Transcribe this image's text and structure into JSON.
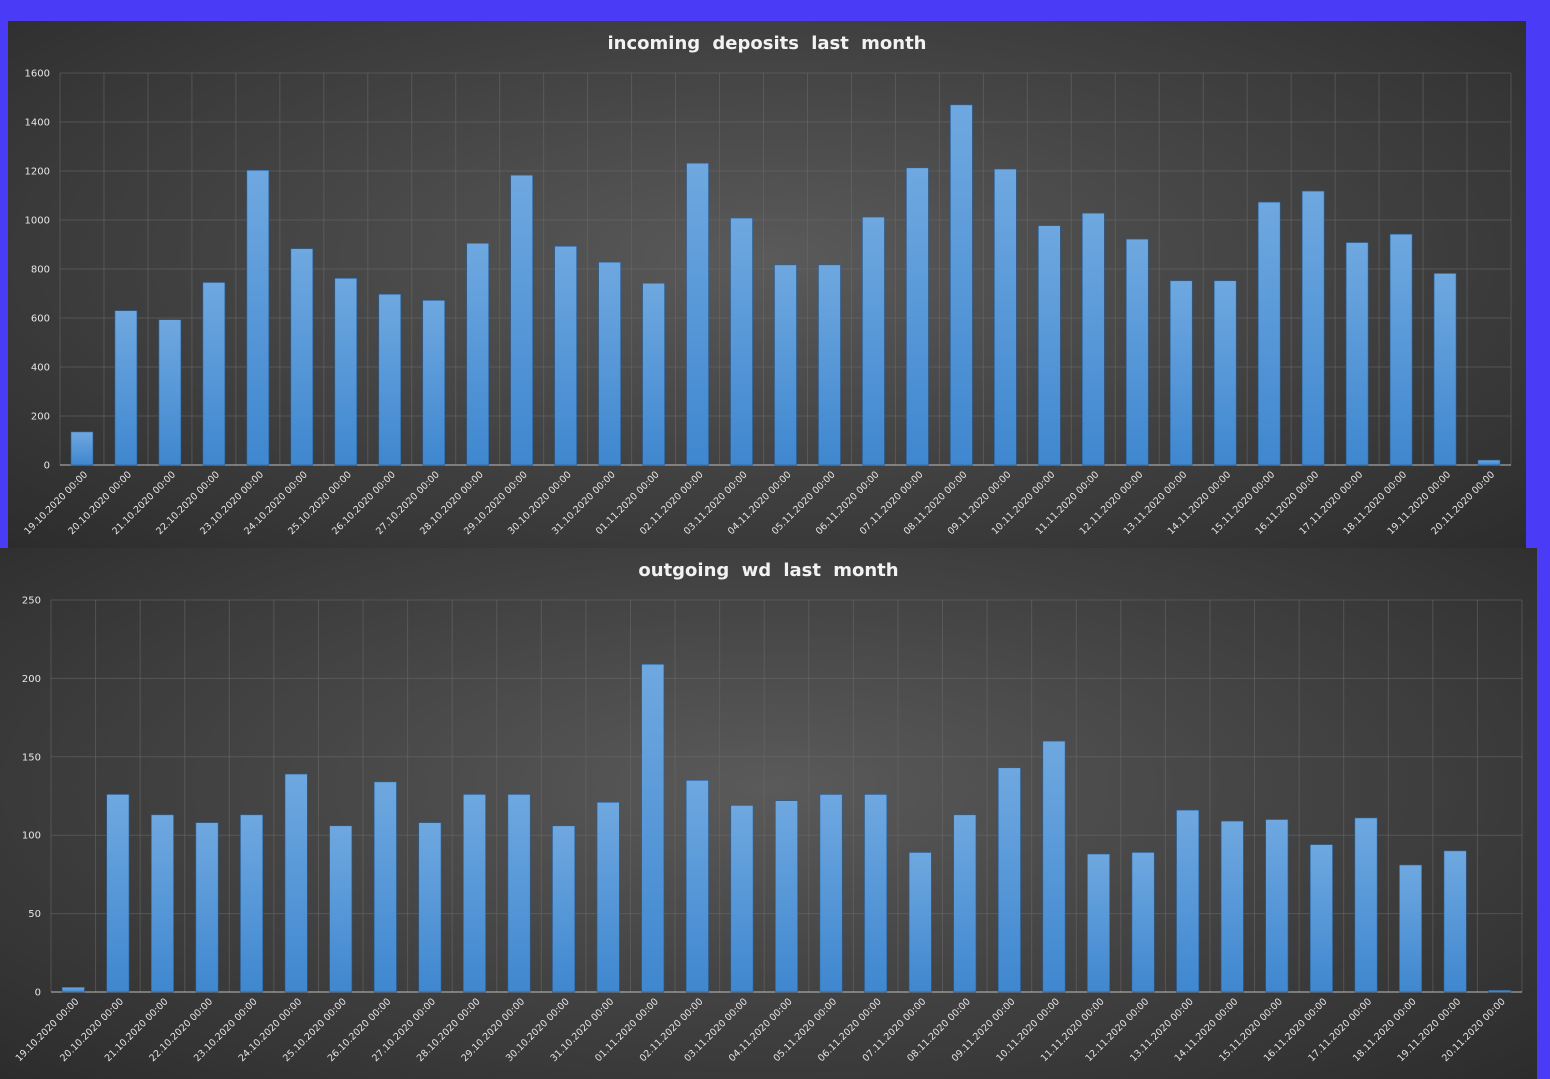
{
  "colors": {
    "background": "#4a3cf6",
    "bar_top": "#6fa8e0",
    "bar_bottom": "#3f87cf"
  },
  "chart_data": [
    {
      "type": "bar",
      "title": "incoming  deposits  last  month",
      "ylim": [
        0,
        1600
      ],
      "yticks": [
        0,
        200,
        400,
        600,
        800,
        1000,
        1200,
        1400,
        1600
      ],
      "categories": [
        "19.10.2020 00:00",
        "20.10.2020 00:00",
        "21.10.2020 00:00",
        "22.10.2020 00:00",
        "23.10.2020 00:00",
        "24.10.2020 00:00",
        "25.10.2020 00:00",
        "26.10.2020 00:00",
        "27.10.2020 00:00",
        "28.10.2020 00:00",
        "29.10.2020 00:00",
        "30.10.2020 00:00",
        "31.10.2020 00:00",
        "01.11.2020 00:00",
        "02.11.2020 00:00",
        "03.11.2020 00:00",
        "04.11.2020 00:00",
        "05.11.2020 00:00",
        "06.11.2020 00:00",
        "07.11.2020 00:00",
        "08.11.2020 00:00",
        "09.11.2020 00:00",
        "10.11.2020 00:00",
        "11.11.2020 00:00",
        "12.11.2020 00:00",
        "13.11.2020 00:00",
        "14.11.2020 00:00",
        "15.11.2020 00:00",
        "16.11.2020 00:00",
        "17.11.2020 00:00",
        "18.11.2020 00:00",
        "19.11.2020 00:00",
        "20.11.2020 00:00"
      ],
      "values": [
        135,
        630,
        593,
        745,
        1203,
        883,
        762,
        697,
        672,
        905,
        1183,
        893,
        828,
        742,
        1232,
        1008,
        817,
        817,
        1012,
        1213,
        1470,
        1208,
        977,
        1028,
        922,
        752,
        752,
        1073,
        1118,
        908,
        942,
        782,
        20
      ],
      "grid": true,
      "legend": "none"
    },
    {
      "type": "bar",
      "title": "outgoing  wd last  month",
      "ylim": [
        0,
        250
      ],
      "yticks": [
        0,
        50,
        100,
        150,
        200,
        250
      ],
      "categories": [
        "19.10.2020 00:00",
        "20.10.2020 00:00",
        "21.10.2020 00:00",
        "22.10.2020 00:00",
        "23.10.2020 00:00",
        "24.10.2020 00:00",
        "25.10.2020 00:00",
        "26.10.2020 00:00",
        "27.10.2020 00:00",
        "28.10.2020 00:00",
        "29.10.2020 00:00",
        "30.10.2020 00:00",
        "31.10.2020 00:00",
        "01.11.2020 00:00",
        "02.11.2020 00:00",
        "03.11.2020 00:00",
        "04.11.2020 00:00",
        "05.11.2020 00:00",
        "06.11.2020 00:00",
        "07.11.2020 00:00",
        "08.11.2020 00:00",
        "09.11.2020 00:00",
        "10.11.2020 00:00",
        "11.11.2020 00:00",
        "12.11.2020 00:00",
        "13.11.2020 00:00",
        "14.11.2020 00:00",
        "15.11.2020 00:00",
        "16.11.2020 00:00",
        "17.11.2020 00:00",
        "18.11.2020 00:00",
        "19.11.2020 00:00",
        "20.11.2020 00:00"
      ],
      "values": [
        3,
        126,
        113,
        108,
        113,
        139,
        106,
        134,
        108,
        126,
        126,
        106,
        121,
        209,
        135,
        119,
        122,
        126,
        126,
        89,
        113,
        143,
        160,
        88,
        89,
        116,
        109,
        110,
        94,
        111,
        81,
        90,
        1
      ],
      "grid": true,
      "legend": "none"
    }
  ]
}
